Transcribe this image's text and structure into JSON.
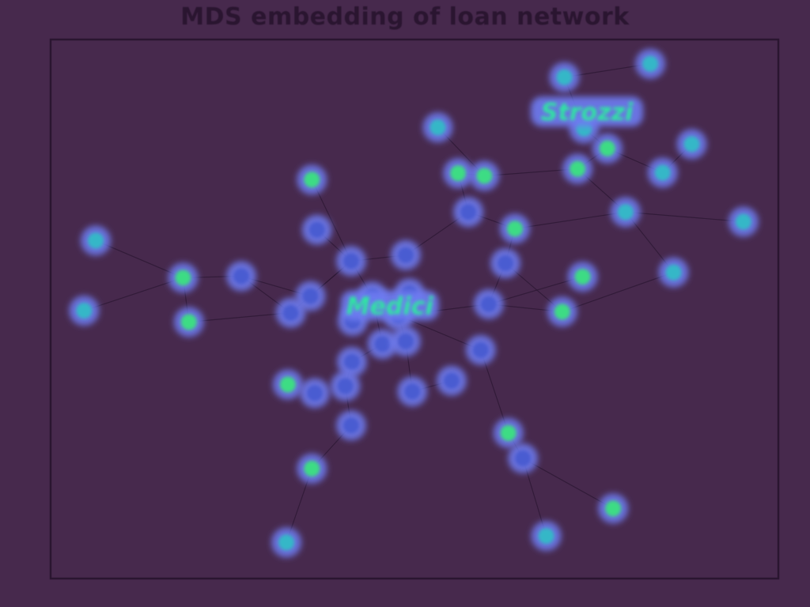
{
  "page": {
    "title": "MDS embedding of loan network"
  },
  "colors": {
    "background": "#47294d",
    "frame": "#2a1530",
    "edge": "#2a1530",
    "halo": "#6e7cf2",
    "core_high": "#3ddc84",
    "core_mid": "#34b7c7",
    "core_low": "#4a5bd1",
    "label": "#2ee6a0"
  },
  "chart_data": {
    "type": "scatter",
    "title": "MDS embedding of loan network",
    "xlabel": "",
    "ylabel": "",
    "xlim": [
      0,
      100
    ],
    "ylim": [
      0,
      100
    ],
    "grid": false,
    "legend": "none",
    "nodes": [
      {
        "id": 0,
        "x": 4.6,
        "y": 50.3,
        "level": "mid"
      },
      {
        "id": 1,
        "x": 6.2,
        "y": 37.3,
        "level": "mid"
      },
      {
        "id": 2,
        "x": 19.0,
        "y": 52.4,
        "level": "high"
      },
      {
        "id": 3,
        "x": 18.2,
        "y": 44.2,
        "level": "high"
      },
      {
        "id": 4,
        "x": 26.2,
        "y": 43.9,
        "level": "low"
      },
      {
        "id": 5,
        "x": 33.0,
        "y": 50.7,
        "level": "low"
      },
      {
        "id": 6,
        "x": 35.7,
        "y": 47.6,
        "level": "low"
      },
      {
        "id": 7,
        "x": 32.6,
        "y": 64.0,
        "level": "high"
      },
      {
        "id": 8,
        "x": 36.3,
        "y": 65.6,
        "level": "low"
      },
      {
        "id": 9,
        "x": 41.3,
        "y": 41.1,
        "level": "low"
      },
      {
        "id": 10,
        "x": 41.5,
        "y": 52.2,
        "level": "low"
      },
      {
        "id": 11,
        "x": 44.2,
        "y": 47.7,
        "level": "low"
      },
      {
        "id": 12,
        "x": 47.8,
        "y": 51.2,
        "level": "low"
      },
      {
        "id": 13,
        "x": 45.6,
        "y": 56.5,
        "level": "low"
      },
      {
        "id": 14,
        "x": 48.8,
        "y": 56.0,
        "level": "low"
      },
      {
        "id": 15,
        "x": 41.4,
        "y": 59.8,
        "level": "low"
      },
      {
        "id": 16,
        "x": 40.5,
        "y": 64.3,
        "level": "low"
      },
      {
        "id": 17,
        "x": 41.3,
        "y": 71.6,
        "level": "low"
      },
      {
        "id": 18,
        "x": 35.9,
        "y": 79.6,
        "level": "high"
      },
      {
        "id": 19,
        "x": 32.4,
        "y": 93.3,
        "level": "mid"
      },
      {
        "id": 20,
        "x": 49.7,
        "y": 65.3,
        "level": "low"
      },
      {
        "id": 21,
        "x": 55.1,
        "y": 63.3,
        "level": "low"
      },
      {
        "id": 22,
        "x": 59.1,
        "y": 57.6,
        "level": "low"
      },
      {
        "id": 23,
        "x": 60.2,
        "y": 49.1,
        "level": "low"
      },
      {
        "id": 24,
        "x": 62.5,
        "y": 41.5,
        "level": "low"
      },
      {
        "id": 25,
        "x": 63.8,
        "y": 35.1,
        "level": "high"
      },
      {
        "id": 26,
        "x": 57.4,
        "y": 32.0,
        "level": "low"
      },
      {
        "id": 27,
        "x": 56.0,
        "y": 24.8,
        "level": "high"
      },
      {
        "id": 28,
        "x": 59.6,
        "y": 25.3,
        "level": "high"
      },
      {
        "id": 29,
        "x": 53.2,
        "y": 16.3,
        "level": "mid"
      },
      {
        "id": 30,
        "x": 35.9,
        "y": 26.0,
        "level": "high"
      },
      {
        "id": 31,
        "x": 36.6,
        "y": 35.3,
        "level": "low"
      },
      {
        "id": 32,
        "x": 48.8,
        "y": 40.0,
        "level": "low"
      },
      {
        "id": 33,
        "x": 49.3,
        "y": 47.1,
        "level": "low"
      },
      {
        "id": 34,
        "x": 62.9,
        "y": 73.0,
        "level": "high"
      },
      {
        "id": 35,
        "x": 64.9,
        "y": 77.7,
        "level": "low"
      },
      {
        "id": 36,
        "x": 68.1,
        "y": 92.1,
        "level": "mid"
      },
      {
        "id": 37,
        "x": 77.3,
        "y": 87.0,
        "level": "high"
      },
      {
        "id": 38,
        "x": 70.3,
        "y": 50.5,
        "level": "high"
      },
      {
        "id": 39,
        "x": 73.1,
        "y": 44.0,
        "level": "high"
      },
      {
        "id": 40,
        "x": 79.0,
        "y": 32.0,
        "level": "mid"
      },
      {
        "id": 41,
        "x": 85.6,
        "y": 43.2,
        "level": "mid"
      },
      {
        "id": 42,
        "x": 95.2,
        "y": 33.8,
        "level": "mid"
      },
      {
        "id": 43,
        "x": 84.1,
        "y": 24.7,
        "level": "mid"
      },
      {
        "id": 44,
        "x": 88.1,
        "y": 19.4,
        "level": "mid"
      },
      {
        "id": 45,
        "x": 72.4,
        "y": 24.0,
        "level": "high"
      },
      {
        "id": 46,
        "x": 76.5,
        "y": 20.2,
        "level": "high"
      },
      {
        "id": 47,
        "x": 73.3,
        "y": 16.5,
        "level": "mid"
      },
      {
        "id": 48,
        "x": 70.6,
        "y": 7.0,
        "level": "mid"
      },
      {
        "id": 49,
        "x": 82.4,
        "y": 4.5,
        "level": "mid"
      }
    ],
    "edges": [
      [
        0,
        3
      ],
      [
        1,
        3
      ],
      [
        2,
        3
      ],
      [
        3,
        4
      ],
      [
        2,
        5
      ],
      [
        4,
        5
      ],
      [
        4,
        6
      ],
      [
        6,
        9
      ],
      [
        5,
        9
      ],
      [
        9,
        11
      ],
      [
        10,
        11
      ],
      [
        11,
        12
      ],
      [
        11,
        13
      ],
      [
        12,
        14
      ],
      [
        13,
        15
      ],
      [
        15,
        16
      ],
      [
        16,
        17
      ],
      [
        17,
        18
      ],
      [
        18,
        19
      ],
      [
        14,
        20
      ],
      [
        20,
        21
      ],
      [
        12,
        22
      ],
      [
        22,
        34
      ],
      [
        34,
        35
      ],
      [
        35,
        36
      ],
      [
        35,
        37
      ],
      [
        12,
        23
      ],
      [
        23,
        24
      ],
      [
        24,
        25
      ],
      [
        25,
        26
      ],
      [
        26,
        27
      ],
      [
        27,
        28
      ],
      [
        28,
        29
      ],
      [
        9,
        30
      ],
      [
        9,
        31
      ],
      [
        9,
        32
      ],
      [
        32,
        26
      ],
      [
        11,
        33
      ],
      [
        23,
        38
      ],
      [
        23,
        39
      ],
      [
        25,
        40
      ],
      [
        40,
        41
      ],
      [
        40,
        42
      ],
      [
        40,
        45
      ],
      [
        45,
        46
      ],
      [
        46,
        47
      ],
      [
        47,
        48
      ],
      [
        46,
        43
      ],
      [
        43,
        44
      ],
      [
        48,
        49
      ],
      [
        28,
        45
      ],
      [
        24,
        38
      ],
      [
        38,
        41
      ]
    ],
    "labels": [
      {
        "text": "Medici",
        "x": 46.6,
        "y": 49.5
      },
      {
        "text": "Strozzi",
        "x": 73.7,
        "y": 13.5
      }
    ]
  }
}
